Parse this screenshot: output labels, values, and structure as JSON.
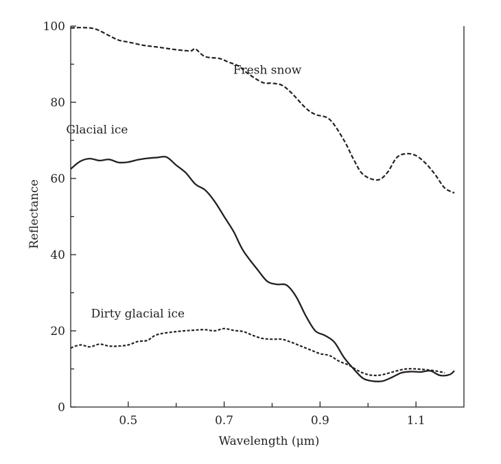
{
  "chart_data": {
    "type": "line",
    "xlabel": "Wavelength (μm)",
    "ylabel": "Reflectance",
    "xlim": [
      0.38,
      1.2
    ],
    "ylim": [
      0,
      100
    ],
    "x_ticks": [
      0.5,
      0.7,
      0.9,
      1.1
    ],
    "x_minor_ticks": [
      0.6,
      0.8,
      1.0
    ],
    "x_tick_labels": [
      "0.5",
      "0.7",
      "0.9",
      "1.1"
    ],
    "y_ticks": [
      0,
      20,
      40,
      60,
      80,
      100
    ],
    "y_tick_labels": [
      "0",
      "20",
      "40",
      "60",
      "80",
      "100"
    ],
    "y_minor_ticks": [
      10,
      30,
      50,
      70,
      90
    ],
    "grid": false,
    "legend": "none",
    "line_color": "#231f20",
    "series": [
      {
        "name": "Fresh snow",
        "style": "dashed",
        "label_at": [
          0.79,
          87.5
        ],
        "points": [
          [
            0.38,
            99.5
          ],
          [
            0.4,
            99.6
          ],
          [
            0.43,
            99.3
          ],
          [
            0.46,
            97.5
          ],
          [
            0.48,
            96.3
          ],
          [
            0.5,
            95.8
          ],
          [
            0.53,
            95.0
          ],
          [
            0.56,
            94.5
          ],
          [
            0.6,
            93.8
          ],
          [
            0.63,
            93.5
          ],
          [
            0.64,
            94.0
          ],
          [
            0.66,
            92.0
          ],
          [
            0.69,
            91.5
          ],
          [
            0.71,
            90.5
          ],
          [
            0.73,
            89.5
          ],
          [
            0.75,
            87.5
          ],
          [
            0.78,
            85.2
          ],
          [
            0.8,
            85.0
          ],
          [
            0.82,
            84.5
          ],
          [
            0.84,
            82.5
          ],
          [
            0.87,
            78.5
          ],
          [
            0.89,
            76.8
          ],
          [
            0.92,
            75.5
          ],
          [
            0.95,
            70.0
          ],
          [
            0.97,
            65.0
          ],
          [
            0.99,
            61.0
          ],
          [
            1.02,
            59.6
          ],
          [
            1.04,
            61.5
          ],
          [
            1.06,
            65.5
          ],
          [
            1.08,
            66.5
          ],
          [
            1.1,
            66.0
          ],
          [
            1.12,
            64.0
          ],
          [
            1.14,
            61.0
          ],
          [
            1.16,
            57.5
          ],
          [
            1.18,
            56.2
          ]
        ]
      },
      {
        "name": "Glacial ice",
        "style": "solid",
        "label_at": [
          0.435,
          71.8
        ],
        "points": [
          [
            0.38,
            62.5
          ],
          [
            0.4,
            64.5
          ],
          [
            0.42,
            65.2
          ],
          [
            0.44,
            64.7
          ],
          [
            0.46,
            65.0
          ],
          [
            0.48,
            64.2
          ],
          [
            0.5,
            64.3
          ],
          [
            0.52,
            64.9
          ],
          [
            0.54,
            65.3
          ],
          [
            0.56,
            65.5
          ],
          [
            0.58,
            65.6
          ],
          [
            0.6,
            63.5
          ],
          [
            0.62,
            61.5
          ],
          [
            0.64,
            58.5
          ],
          [
            0.66,
            57.0
          ],
          [
            0.68,
            54.0
          ],
          [
            0.7,
            50.0
          ],
          [
            0.72,
            46.0
          ],
          [
            0.74,
            41.0
          ],
          [
            0.77,
            36.0
          ],
          [
            0.79,
            33.0
          ],
          [
            0.81,
            32.2
          ],
          [
            0.83,
            32.0
          ],
          [
            0.85,
            29.0
          ],
          [
            0.87,
            24.0
          ],
          [
            0.89,
            20.0
          ],
          [
            0.91,
            18.8
          ],
          [
            0.93,
            17.0
          ],
          [
            0.95,
            13.0
          ],
          [
            0.97,
            10.0
          ],
          [
            0.99,
            7.5
          ],
          [
            1.01,
            6.8
          ],
          [
            1.03,
            6.8
          ],
          [
            1.05,
            7.8
          ],
          [
            1.07,
            9.0
          ],
          [
            1.09,
            9.3
          ],
          [
            1.11,
            9.2
          ],
          [
            1.13,
            9.5
          ],
          [
            1.15,
            8.3
          ],
          [
            1.17,
            8.5
          ],
          [
            1.18,
            9.5
          ]
        ]
      },
      {
        "name": "Dirty glacial ice",
        "style": "dotted",
        "label_at": [
          0.52,
          23.5
        ],
        "points": [
          [
            0.38,
            15.5
          ],
          [
            0.4,
            16.3
          ],
          [
            0.42,
            15.8
          ],
          [
            0.44,
            16.5
          ],
          [
            0.46,
            16.0
          ],
          [
            0.48,
            16.0
          ],
          [
            0.5,
            16.3
          ],
          [
            0.52,
            17.2
          ],
          [
            0.54,
            17.5
          ],
          [
            0.56,
            19.0
          ],
          [
            0.6,
            19.8
          ],
          [
            0.64,
            20.2
          ],
          [
            0.66,
            20.3
          ],
          [
            0.68,
            20.0
          ],
          [
            0.7,
            20.6
          ],
          [
            0.72,
            20.1
          ],
          [
            0.74,
            19.8
          ],
          [
            0.76,
            18.8
          ],
          [
            0.78,
            18.0
          ],
          [
            0.8,
            17.8
          ],
          [
            0.82,
            17.8
          ],
          [
            0.84,
            17.0
          ],
          [
            0.86,
            16.0
          ],
          [
            0.88,
            15.0
          ],
          [
            0.9,
            14.0
          ],
          [
            0.92,
            13.5
          ],
          [
            0.94,
            12.0
          ],
          [
            0.96,
            11.0
          ],
          [
            0.98,
            9.5
          ],
          [
            1.0,
            8.5
          ],
          [
            1.02,
            8.3
          ],
          [
            1.04,
            8.8
          ],
          [
            1.06,
            9.5
          ],
          [
            1.08,
            10.0
          ],
          [
            1.1,
            10.0
          ],
          [
            1.12,
            9.8
          ],
          [
            1.14,
            9.5
          ],
          [
            1.16,
            9.0
          ]
        ]
      }
    ]
  }
}
